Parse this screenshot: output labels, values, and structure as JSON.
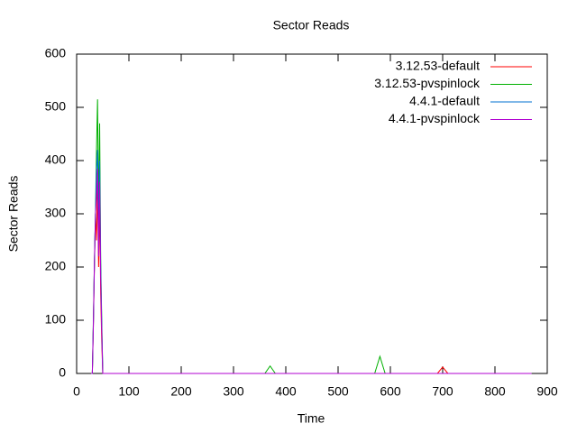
{
  "chart_data": {
    "type": "line",
    "title": "Sector Reads",
    "x_label": "Time",
    "y_label": "Sector Reads",
    "x": [
      28,
      30,
      32,
      34,
      36,
      38,
      40,
      42,
      44,
      46,
      48,
      50,
      52,
      360,
      370,
      380,
      570,
      580,
      590,
      690,
      700,
      710,
      870
    ],
    "series": [
      {
        "name": "3.12.53-default",
        "color": "#ff0000",
        "values": [
          0,
          0,
          90,
          200,
          300,
          250,
          355,
          200,
          320,
          150,
          60,
          0,
          0,
          0,
          0,
          0,
          0,
          0,
          0,
          0,
          12,
          0,
          0
        ]
      },
      {
        "name": "3.12.53-pvspinlock",
        "color": "#00b000",
        "values": [
          0,
          0,
          100,
          210,
          300,
          420,
          515,
          300,
          470,
          215,
          100,
          0,
          0,
          0,
          14,
          0,
          0,
          32,
          0,
          0,
          0,
          0,
          0
        ]
      },
      {
        "name": "4.4.1-default",
        "color": "#0070d0",
        "values": [
          0,
          0,
          95,
          205,
          295,
          380,
          420,
          250,
          400,
          200,
          90,
          0,
          0,
          0,
          0,
          0,
          0,
          0,
          0,
          0,
          0,
          0,
          0
        ]
      },
      {
        "name": "4.4.1-pvspinlock",
        "color": "#b000d0",
        "values": [
          0,
          0,
          90,
          210,
          300,
          330,
          385,
          220,
          360,
          180,
          80,
          0,
          0,
          0,
          0,
          0,
          0,
          0,
          0,
          0,
          0,
          0,
          0
        ]
      }
    ],
    "xlim": [
      0,
      900
    ],
    "xticks": [
      0,
      100,
      200,
      300,
      400,
      500,
      600,
      700,
      800,
      900
    ],
    "ylim": [
      0,
      600
    ],
    "yticks": [
      0,
      100,
      200,
      300,
      400,
      500,
      600
    ],
    "legend": "top-right"
  }
}
